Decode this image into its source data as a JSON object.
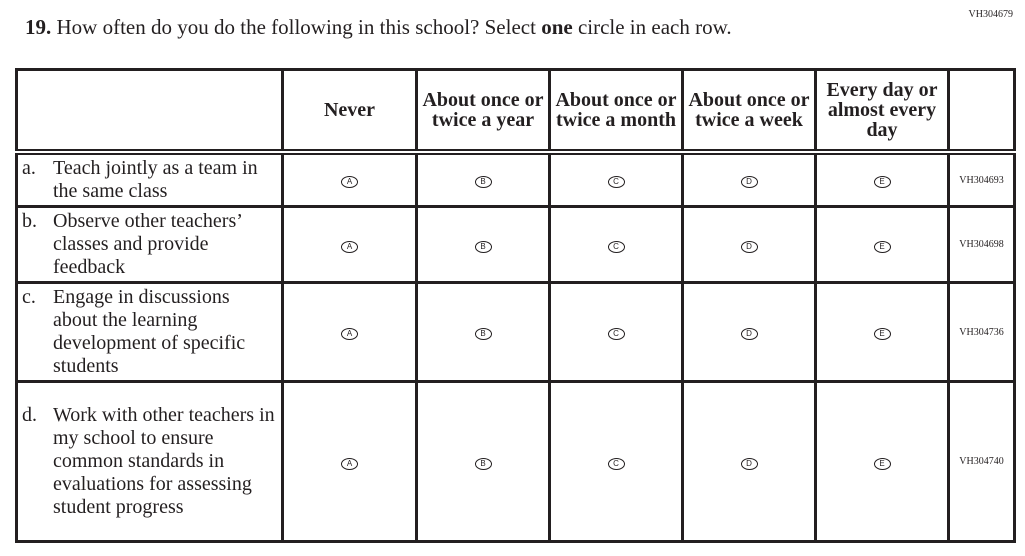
{
  "question_id": "VH304679",
  "question": {
    "number": "19.",
    "text_before": "How often do you do the following in this school? Select ",
    "text_bold": "one",
    "text_after": " circle in each row."
  },
  "columns": [
    "Never",
    "About once or twice a year",
    "About once or twice a month",
    "About once or twice a week",
    "Every day or almost every day"
  ],
  "options": [
    "A",
    "B",
    "C",
    "D",
    "E"
  ],
  "rows": [
    {
      "letter": "a.",
      "text": "Teach jointly as a team in the same class",
      "code": "VH304693"
    },
    {
      "letter": "b.",
      "text": "Observe other teachers’ classes and provide feedback",
      "code": "VH304698"
    },
    {
      "letter": "c.",
      "text": "Engage in discussions about the learning development of specific students",
      "code": "VH304736"
    },
    {
      "letter": "d.",
      "text": "Work with other teachers in my school to ensure common standards in evaluations for assessing student progress",
      "code": "VH304740"
    }
  ]
}
